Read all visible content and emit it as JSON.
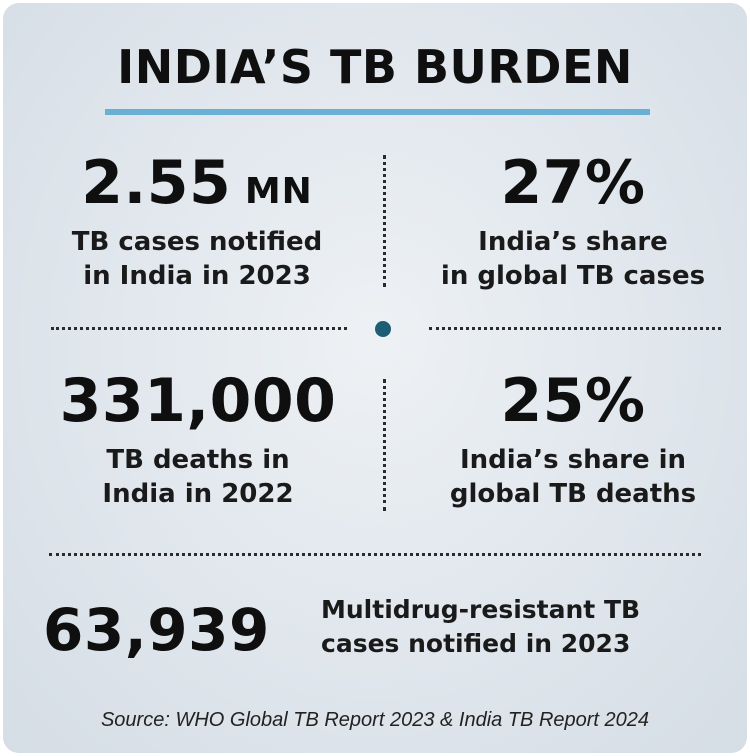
{
  "title": "INDIA’S TB BURDEN",
  "colors": {
    "accent_rule": "#6ab0d4",
    "center_dot": "#1e5e74",
    "background": "#e2e8ee"
  },
  "stats": {
    "cases_notified": {
      "value": "2.55",
      "unit": "MN",
      "caption_line1": "TB cases notified",
      "caption_line2": "in India in 2023"
    },
    "share_cases": {
      "value": "27%",
      "caption_line1": "India’s share",
      "caption_line2": "in global TB cases"
    },
    "deaths": {
      "value": "331,000",
      "caption_line1": "TB deaths in",
      "caption_line2": "India in 2022"
    },
    "share_deaths": {
      "value": "25%",
      "caption_line1": "India’s share in",
      "caption_line2": "global TB deaths"
    },
    "mdr": {
      "value": "63,939",
      "caption_line1": "Multidrug-resistant TB",
      "caption_line2": "cases notified in 2023"
    }
  },
  "source": "Source: WHO Global TB Report 2023 & India TB Report 2024"
}
